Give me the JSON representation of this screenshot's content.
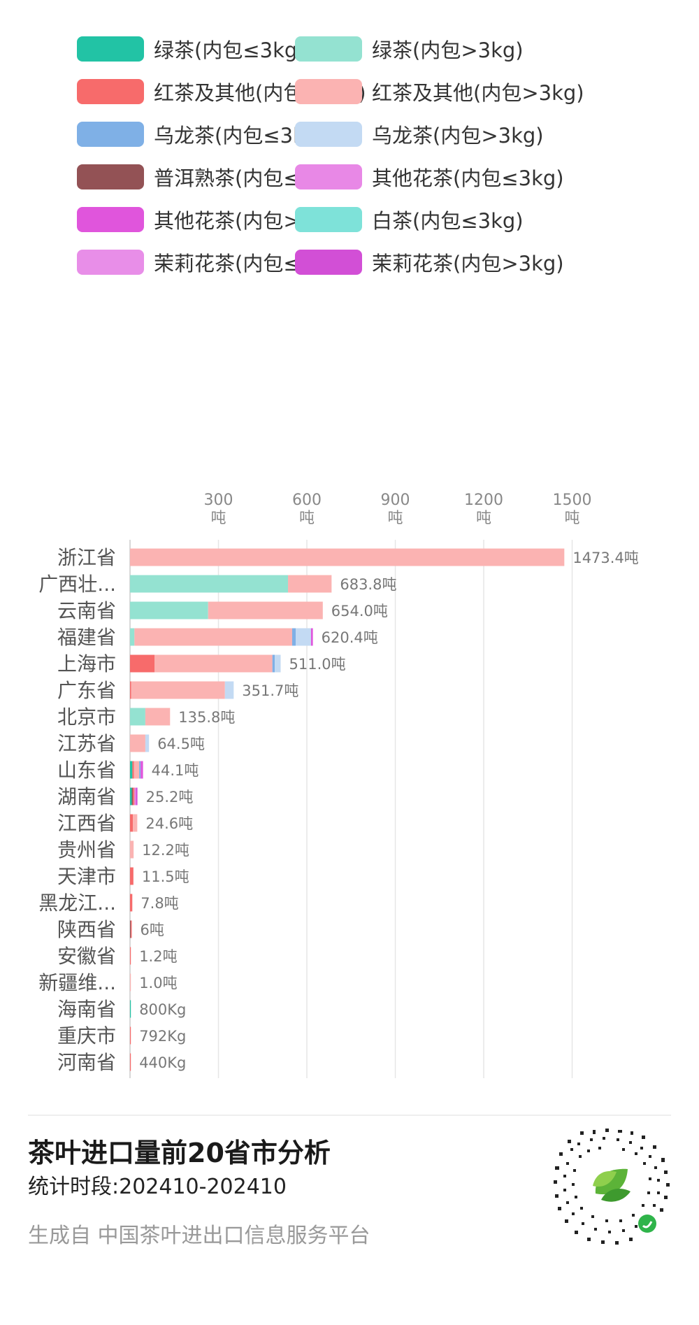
{
  "colors": {
    "绿茶(内包≤3kg)": "#22c3a5",
    "绿茶(内包>3kg)": "#94e2d1",
    "红茶及其他(内包≤3kg)": "#f76b6b",
    "红茶及其他(内包>3kg)": "#fbb3b2",
    "乌龙茶(内包≤3kg)": "#7fb0e6",
    "乌龙茶(内包>3kg)": "#c3daf3",
    "普洱熟茶(内包≤3kg)": "#935255",
    "其他花茶(内包≤3kg)": "#e888e6",
    "其他花茶(内包>3kg)": "#e055dc",
    "白茶(内包≤3kg)": "#7ee2d9",
    "茉莉花茶(内包≤3kg)": "#e88ee8",
    "茉莉花茶(内包>3kg)": "#d24fd6"
  },
  "legend": [
    "绿茶(内包≤3kg)",
    "绿茶(内包>3kg)",
    "红茶及其他(内包≤3kg)",
    "红茶及其他(内包>3kg)",
    "乌龙茶(内包≤3kg)",
    "乌龙茶(内包>3kg)",
    "普洱熟茶(内包≤3kg)",
    "其他花茶(内包≤3kg)",
    "其他花茶(内包>3kg)",
    "白茶(内包≤3kg)",
    "茉莉花茶(内包≤3kg)",
    "茉莉花茶(内包>3kg)"
  ],
  "chart_data": {
    "type": "bar",
    "orientation": "horizontal",
    "stacked": true,
    "title": "茶叶进口量前20省市分析",
    "unit": "吨",
    "x_ticks": [
      300,
      600,
      900,
      1200,
      1500
    ],
    "x_tick_unit": "吨",
    "xlim": [
      0,
      1500
    ],
    "grid": true,
    "legend_position": "top",
    "categories": [
      "浙江省",
      "广西壮...",
      "云南省",
      "福建省",
      "上海市",
      "广东省",
      "北京市",
      "江苏省",
      "山东省",
      "湖南省",
      "江西省",
      "贵州省",
      "天津市",
      "黑龙江...",
      "陕西省",
      "安徽省",
      "新疆维...",
      "海南省",
      "重庆市",
      "河南省"
    ],
    "totals": [
      1473.4,
      683.8,
      654.0,
      620.4,
      511.0,
      351.7,
      135.8,
      64.5,
      44.1,
      25.2,
      24.6,
      12.2,
      11.5,
      7.8,
      6,
      1.2,
      1.0,
      0.8,
      0.792,
      0.44
    ],
    "total_labels": [
      "1473.4吨",
      "683.8吨",
      "654.0吨",
      "620.4吨",
      "511.0吨",
      "351.7吨",
      "135.8吨",
      "64.5吨",
      "44.1吨",
      "25.2吨",
      "24.6吨",
      "12.2吨",
      "11.5吨",
      "7.8吨",
      "6吨",
      "1.2吨",
      "1.0吨",
      "800Kg",
      "792Kg",
      "440Kg"
    ],
    "segments": [
      [
        {
          "s": "红茶及其他(内包>3kg)",
          "v": 1473.4
        }
      ],
      [
        {
          "s": "绿茶(内包>3kg)",
          "v": 536
        },
        {
          "s": "红茶及其他(内包>3kg)",
          "v": 147.8
        }
      ],
      [
        {
          "s": "绿茶(内包>3kg)",
          "v": 265
        },
        {
          "s": "红茶及其他(内包>3kg)",
          "v": 389
        }
      ],
      [
        {
          "s": "绿茶(内包>3kg)",
          "v": 15
        },
        {
          "s": "红茶及其他(内包>3kg)",
          "v": 535
        },
        {
          "s": "乌龙茶(内包≤3kg)",
          "v": 12
        },
        {
          "s": "乌龙茶(内包>3kg)",
          "v": 52
        },
        {
          "s": "其他花茶(内包>3kg)",
          "v": 6.4
        }
      ],
      [
        {
          "s": "红茶及其他(内包≤3kg)",
          "v": 83
        },
        {
          "s": "红茶及其他(内包>3kg)",
          "v": 400
        },
        {
          "s": "乌龙茶(内包≤3kg)",
          "v": 8
        },
        {
          "s": "乌龙茶(内包>3kg)",
          "v": 20
        }
      ],
      [
        {
          "s": "红茶及其他(内包≤3kg)",
          "v": 4
        },
        {
          "s": "红茶及其他(内包>3kg)",
          "v": 318
        },
        {
          "s": "乌龙茶(内包>3kg)",
          "v": 29.7
        }
      ],
      [
        {
          "s": "绿茶(内包>3kg)",
          "v": 52
        },
        {
          "s": "红茶及其他(内包>3kg)",
          "v": 83.8
        }
      ],
      [
        {
          "s": "红茶及其他(内包>3kg)",
          "v": 52
        },
        {
          "s": "乌龙茶(内包>3kg)",
          "v": 12.5
        }
      ],
      [
        {
          "s": "绿茶(内包≤3kg)",
          "v": 8
        },
        {
          "s": "红茶及其他(内包≤3kg)",
          "v": 5
        },
        {
          "s": "红茶及其他(内包>3kg)",
          "v": 18
        },
        {
          "s": "乌龙茶(内包≤3kg)",
          "v": 5
        },
        {
          "s": "其他花茶(内包>3kg)",
          "v": 8.1
        }
      ],
      [
        {
          "s": "绿茶(内包≤3kg)",
          "v": 6
        },
        {
          "s": "普洱熟茶(内包≤3kg)",
          "v": 4
        },
        {
          "s": "红茶及其他(内包≤3kg)",
          "v": 5
        },
        {
          "s": "其他花茶(内包≤3kg)",
          "v": 5
        },
        {
          "s": "茉莉花茶(内包>3kg)",
          "v": 5.2
        }
      ],
      [
        {
          "s": "红茶及其他(内包≤3kg)",
          "v": 10
        },
        {
          "s": "红茶及其他(内包>3kg)",
          "v": 14.6
        }
      ],
      [
        {
          "s": "红茶及其他(内包>3kg)",
          "v": 12.2
        }
      ],
      [
        {
          "s": "红茶及其他(内包≤3kg)",
          "v": 11.5
        }
      ],
      [
        {
          "s": "红茶及其他(内包≤3kg)",
          "v": 7.8
        }
      ],
      [
        {
          "s": "普洱熟茶(内包≤3kg)",
          "v": 3
        },
        {
          "s": "红茶及其他(内包≤3kg)",
          "v": 3
        }
      ],
      [
        {
          "s": "红茶及其他(内包≤3kg)",
          "v": 1.2
        }
      ],
      [
        {
          "s": "红茶及其他(内包>3kg)",
          "v": 1.0
        }
      ],
      [
        {
          "s": "绿茶(内包≤3kg)",
          "v": 0.8
        }
      ],
      [
        {
          "s": "红茶及其他(内包≤3kg)",
          "v": 0.792
        }
      ],
      [
        {
          "s": "红茶及其他(内包≤3kg)",
          "v": 0.44
        }
      ]
    ]
  },
  "footer": {
    "title": "茶叶进口量前20省市分析",
    "period": "统计时段:202410-202410",
    "source": "生成自 中国茶叶进出口信息服务平台"
  }
}
